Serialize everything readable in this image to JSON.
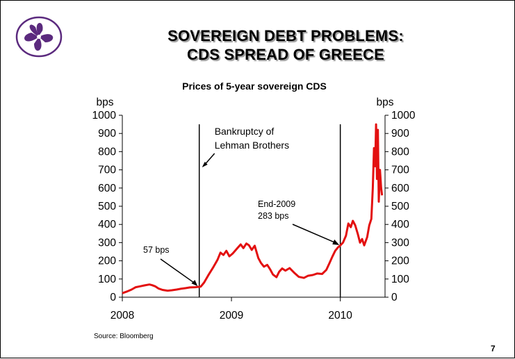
{
  "slide": {
    "title_line1": "SOVEREIGN DEBT PROBLEMS:",
    "title_line2": "CDS SPREAD OF GREECE",
    "source": "Source: Bloomberg",
    "page_number": "7",
    "logo_icon": "bauhinia-flower-icon",
    "logo_color": "#5b2a7e"
  },
  "chart_data": {
    "type": "line",
    "title": "Prices of 5-year sovereign CDS",
    "ylabel_left": "bps",
    "ylabel_right": "bps",
    "ylim": [
      0,
      1000
    ],
    "yticks": [
      0,
      100,
      200,
      300,
      400,
      500,
      600,
      700,
      800,
      900,
      1000
    ],
    "xlim": [
      "2008-01-01",
      "2010-05-31"
    ],
    "xticks": [
      {
        "date": "2008-01-01",
        "label": "2008"
      },
      {
        "date": "2009-01-01",
        "label": "2009"
      },
      {
        "date": "2010-01-01",
        "label": "2010"
      }
    ],
    "grid": false,
    "legend": "none",
    "series": [
      {
        "color": "#e31010",
        "points": [
          [
            "2008-01-01",
            22
          ],
          [
            "2008-01-15",
            30
          ],
          [
            "2008-02-01",
            42
          ],
          [
            "2008-02-15",
            55
          ],
          [
            "2008-03-01",
            60
          ],
          [
            "2008-03-15",
            65
          ],
          [
            "2008-04-01",
            70
          ],
          [
            "2008-04-10",
            66
          ],
          [
            "2008-04-20",
            60
          ],
          [
            "2008-05-01",
            48
          ],
          [
            "2008-05-15",
            40
          ],
          [
            "2008-06-01",
            36
          ],
          [
            "2008-06-15",
            38
          ],
          [
            "2008-07-01",
            42
          ],
          [
            "2008-07-15",
            46
          ],
          [
            "2008-08-01",
            50
          ],
          [
            "2008-08-15",
            54
          ],
          [
            "2008-09-01",
            55
          ],
          [
            "2008-09-12",
            57
          ],
          [
            "2008-09-20",
            58
          ],
          [
            "2008-10-01",
            80
          ],
          [
            "2008-10-15",
            120
          ],
          [
            "2008-11-01",
            165
          ],
          [
            "2008-11-15",
            205
          ],
          [
            "2008-11-25",
            245
          ],
          [
            "2008-12-05",
            232
          ],
          [
            "2008-12-15",
            255
          ],
          [
            "2008-12-25",
            225
          ],
          [
            "2009-01-05",
            240
          ],
          [
            "2009-01-20",
            268
          ],
          [
            "2009-02-01",
            290
          ],
          [
            "2009-02-10",
            270
          ],
          [
            "2009-02-20",
            295
          ],
          [
            "2009-03-01",
            285
          ],
          [
            "2009-03-10",
            260
          ],
          [
            "2009-03-20",
            283
          ],
          [
            "2009-04-01",
            215
          ],
          [
            "2009-04-10",
            188
          ],
          [
            "2009-04-20",
            168
          ],
          [
            "2009-05-01",
            178
          ],
          [
            "2009-05-10",
            155
          ],
          [
            "2009-05-20",
            125
          ],
          [
            "2009-06-01",
            110
          ],
          [
            "2009-06-10",
            140
          ],
          [
            "2009-06-20",
            158
          ],
          [
            "2009-07-01",
            146
          ],
          [
            "2009-07-15",
            160
          ],
          [
            "2009-08-01",
            132
          ],
          [
            "2009-08-15",
            112
          ],
          [
            "2009-09-01",
            106
          ],
          [
            "2009-09-15",
            118
          ],
          [
            "2009-10-01",
            122
          ],
          [
            "2009-10-15",
            130
          ],
          [
            "2009-11-01",
            128
          ],
          [
            "2009-11-15",
            150
          ],
          [
            "2009-11-25",
            185
          ],
          [
            "2009-12-05",
            222
          ],
          [
            "2009-12-15",
            255
          ],
          [
            "2009-12-25",
            275
          ],
          [
            "2009-12-31",
            283
          ],
          [
            "2010-01-10",
            300
          ],
          [
            "2010-01-20",
            338
          ],
          [
            "2010-01-28",
            405
          ],
          [
            "2010-02-05",
            385
          ],
          [
            "2010-02-12",
            420
          ],
          [
            "2010-02-20",
            395
          ],
          [
            "2010-03-01",
            345
          ],
          [
            "2010-03-08",
            300
          ],
          [
            "2010-03-15",
            320
          ],
          [
            "2010-03-22",
            285
          ],
          [
            "2010-04-01",
            330
          ],
          [
            "2010-04-08",
            395
          ],
          [
            "2010-04-15",
            430
          ],
          [
            "2010-04-20",
            600
          ],
          [
            "2010-04-24",
            820
          ],
          [
            "2010-04-28",
            720
          ],
          [
            "2010-05-01",
            950
          ],
          [
            "2010-05-04",
            650
          ],
          [
            "2010-05-07",
            920
          ],
          [
            "2010-05-10",
            525
          ],
          [
            "2010-05-14",
            700
          ],
          [
            "2010-05-18",
            600
          ],
          [
            "2010-05-21",
            560
          ]
        ]
      }
    ],
    "event_lines": [
      {
        "date": "2008-09-15",
        "label_lines": [
          "Bankruptcy of",
          "Lehman Brothers"
        ]
      },
      {
        "date": "2010-01-01",
        "label_lines": []
      }
    ],
    "annotations": [
      {
        "text": "57 bps",
        "date": "2008-09-12",
        "value": 57
      },
      {
        "text_lines": [
          "End-2009",
          "283 bps"
        ],
        "date": "2009-12-31",
        "value": 283
      }
    ]
  }
}
